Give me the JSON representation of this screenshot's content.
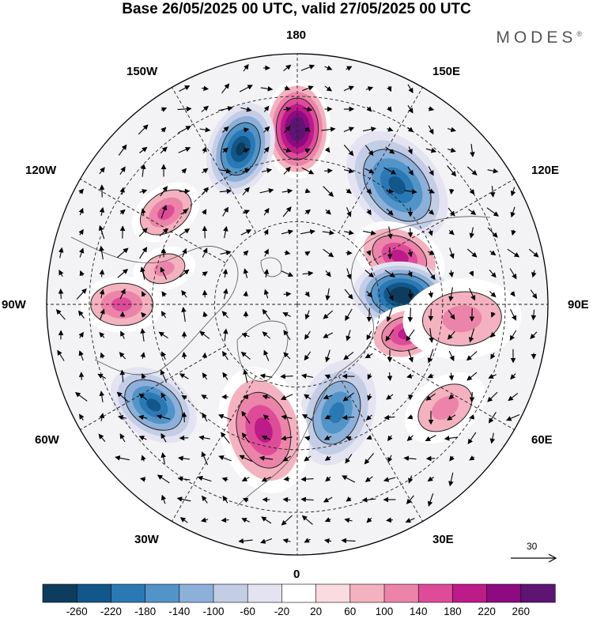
{
  "title": "Base 26/05/2025 00 UTC, valid 27/05/2025 00 UTC",
  "brand": "MODES",
  "brand_mark": "®",
  "longitude_labels": {
    "top": "180",
    "bottom": "0",
    "left": "90W",
    "right": "90E",
    "upper_left_1": "150W",
    "upper_left_2": "120W",
    "upper_right_1": "150E",
    "upper_right_2": "120E",
    "lower_left_1": "60W",
    "lower_left_2": "30W",
    "lower_right_1": "60E",
    "lower_right_2": "30E"
  },
  "reference_vector": "30",
  "colorbar": {
    "colors": [
      "#0e3c5e",
      "#12578a",
      "#2a79b4",
      "#5294c8",
      "#8cb0d9",
      "#c3cde6",
      "#e4e3f1",
      "#ffffff",
      "#f9dbe0",
      "#f4b2c0",
      "#ec84a9",
      "#de4c99",
      "#bd1a8a",
      "#8e0a80",
      "#5d1473"
    ],
    "ticks": [
      "-260",
      "-220",
      "-180",
      "-140",
      "-100",
      "-60",
      "-20",
      "20",
      "60",
      "100",
      "140",
      "180",
      "220",
      "260"
    ]
  },
  "anomaly_centers": [
    {
      "kind": "positive",
      "lon": 180,
      "strength": 260
    },
    {
      "kind": "negative",
      "lon": -160,
      "strength": -240
    },
    {
      "kind": "negative",
      "lon": 140,
      "strength": -180
    },
    {
      "kind": "positive",
      "lon": 115,
      "strength": 150
    },
    {
      "kind": "negative",
      "lon": 95,
      "strength": -260
    },
    {
      "kind": "positive",
      "lon": 75,
      "strength": 170
    },
    {
      "kind": "negative",
      "lon": 20,
      "strength": -160
    },
    {
      "kind": "positive",
      "lon": -15,
      "strength": 170
    },
    {
      "kind": "negative",
      "lon": -55,
      "strength": -200
    },
    {
      "kind": "positive",
      "lon": -90,
      "strength": 130
    },
    {
      "kind": "positive",
      "lon": -125,
      "strength": 110
    },
    {
      "kind": "positive",
      "lon": -105,
      "strength": 70
    },
    {
      "kind": "positive",
      "lon": 85,
      "strength": 80
    },
    {
      "kind": "positive",
      "lon": 55,
      "strength": 60
    }
  ]
}
